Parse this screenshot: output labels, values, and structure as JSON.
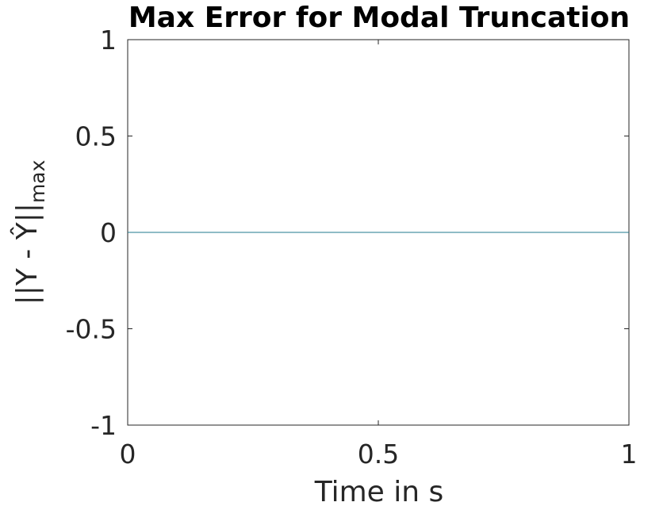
{
  "chart_data": {
    "type": "line",
    "title": "Max Error for Modal Truncation",
    "xlabel": "Time in s",
    "ylabel_main": "||Y - Ŷ||",
    "ylabel_sub": "max",
    "xlim": [
      0,
      1
    ],
    "ylim": [
      -1,
      1
    ],
    "xticks": [
      0,
      0.5,
      1
    ],
    "xtick_labels": [
      "0",
      "0.5",
      "1"
    ],
    "yticks": [
      -1,
      -0.5,
      0,
      0.5,
      1
    ],
    "ytick_labels": [
      "-1",
      "-0.5",
      "0",
      "0.5",
      "1"
    ],
    "grid": false,
    "series": [
      {
        "color": "#1f7a8c",
        "x": [
          0,
          1
        ],
        "y": [
          0,
          0
        ]
      }
    ]
  }
}
